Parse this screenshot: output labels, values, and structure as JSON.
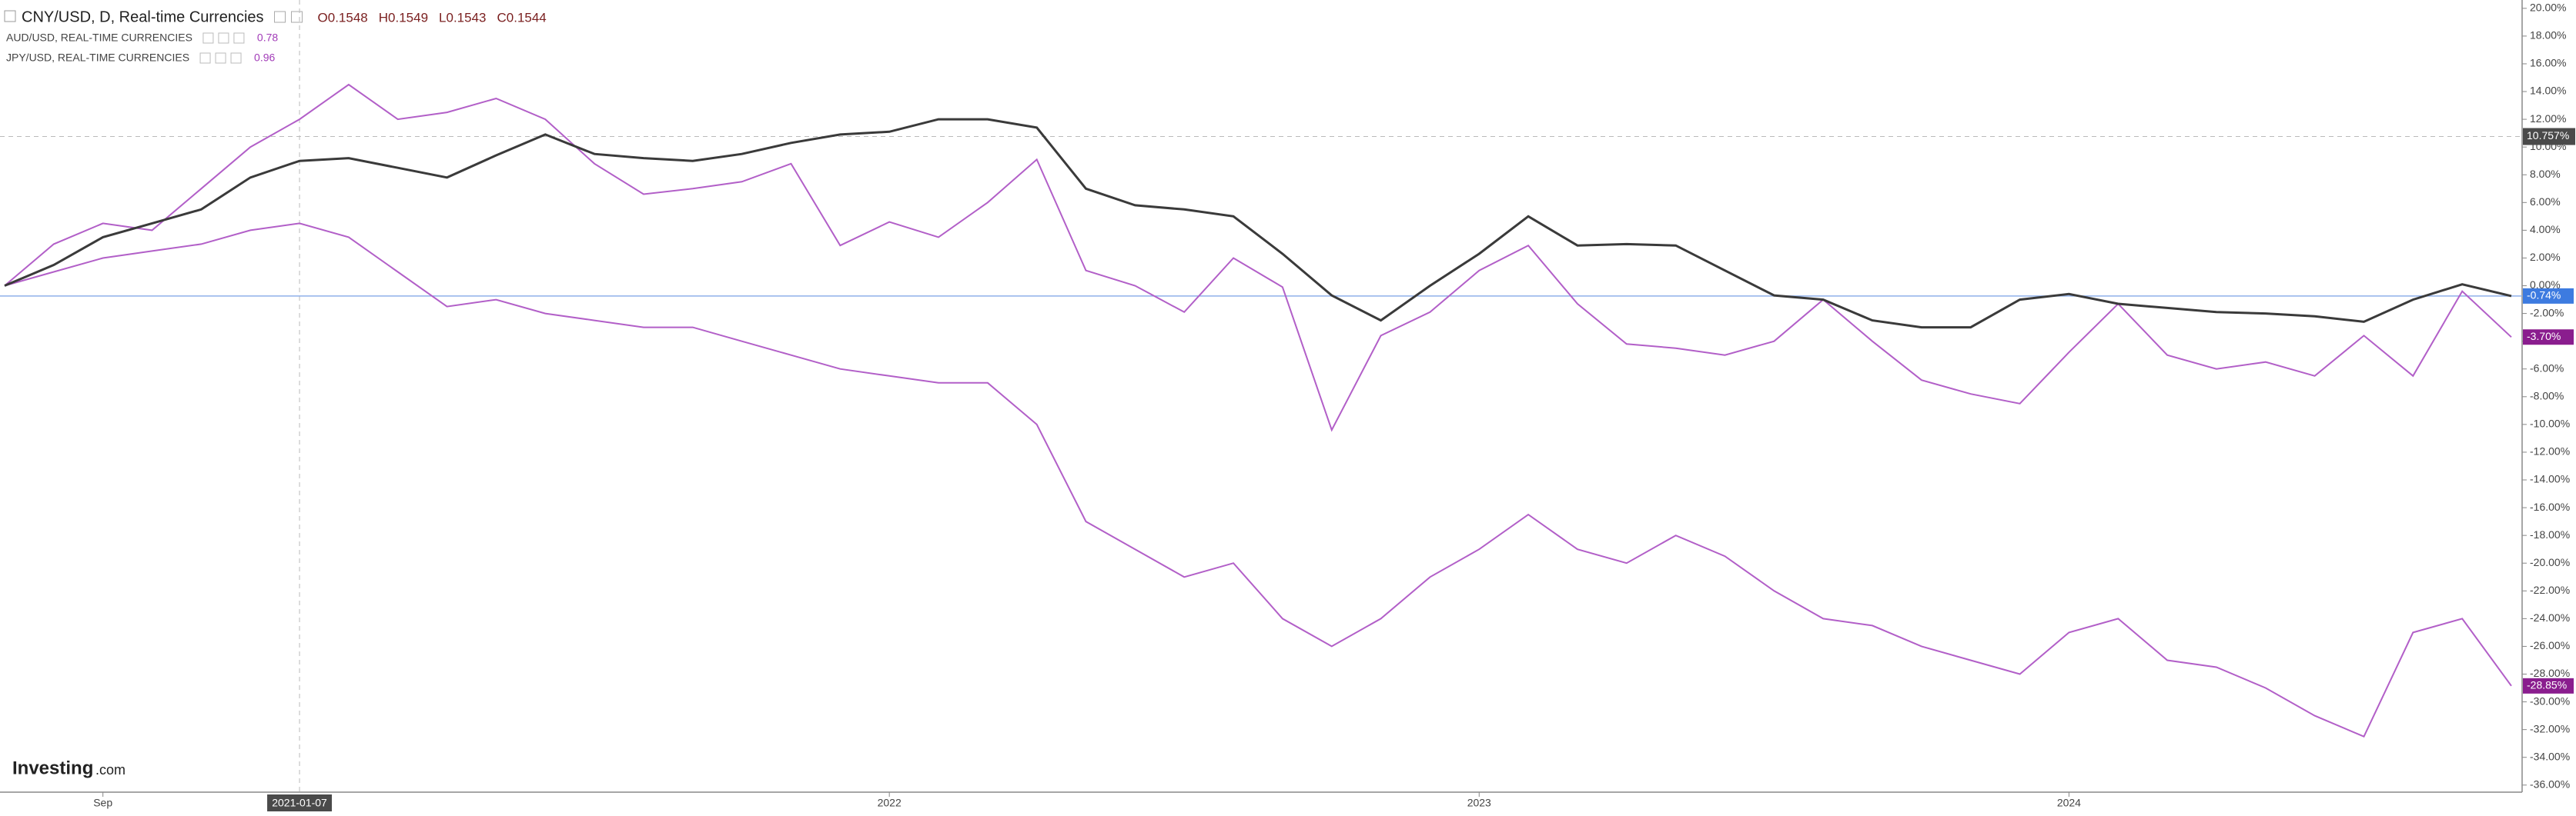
{
  "chart_data": {
    "type": "line",
    "categories": [
      null,
      null,
      "Sep",
      null,
      null,
      null,
      null,
      null,
      null,
      null,
      null,
      null,
      null,
      null,
      null,
      null,
      null,
      null,
      "2022",
      null,
      null,
      null,
      null,
      null,
      null,
      null,
      null,
      null,
      null,
      null,
      "2023",
      null,
      null,
      null,
      null,
      null,
      null,
      null,
      null,
      null,
      null,
      null,
      "2024",
      null,
      null,
      null,
      null,
      null,
      null,
      null,
      null,
      null
    ],
    "series": [
      {
        "name": "CNY/USD, D, Real-time Currencies",
        "color": "#3a3a3a",
        "ohlc": [
          "O0.1548",
          "H0.1549",
          "L0.1543",
          "C0.1544"
        ],
        "badge": {
          "value": -0.74,
          "label": "-0.74%",
          "color": "#3d7be0"
        },
        "values": [
          0,
          1.5,
          3.5,
          4.5,
          5.5,
          7.8,
          9,
          9.2,
          8.5,
          7.8,
          9.4,
          10.9,
          9.5,
          9.2,
          9,
          9.5,
          10.3,
          10.9,
          11.1,
          12,
          12,
          11.4,
          7,
          5.8,
          5.5,
          5,
          2.3,
          -0.7,
          -2.5,
          0,
          2.3,
          5,
          2.9,
          3,
          2.9,
          1.1,
          -0.7,
          -1,
          -2.5,
          -3,
          -3,
          -1,
          -0.6,
          -1.3,
          -1.6,
          -1.9,
          -2,
          -2.2,
          -2.6,
          -1,
          0.1,
          -0.74
        ]
      },
      {
        "name": "AUD/USD, REAL-TIME CURRENCIES",
        "color": "#b25fc8",
        "header_value": 0.78,
        "badge": {
          "value": -3.7,
          "label": "-3.70%",
          "color": "#8a1d8e"
        },
        "values": [
          0,
          3,
          4.5,
          4,
          7,
          10,
          12,
          14.5,
          12,
          12.5,
          13.5,
          12,
          8.8,
          6.6,
          7,
          7.5,
          8.8,
          2.9,
          4.6,
          3.5,
          6,
          9.1,
          1.1,
          0,
          -1.9,
          2,
          -0.1,
          -10.4,
          -3.6,
          -1.9,
          1.1,
          2.9,
          -1.3,
          -4.2,
          -4.5,
          -5,
          -4,
          -1,
          -4,
          -6.8,
          -7.8,
          -8.5,
          -4.8,
          -1.3,
          -5,
          -6,
          -5.5,
          -6.5,
          -3.6,
          -6.5,
          -0.4,
          -3.7
        ]
      },
      {
        "name": "JPY/USD, REAL-TIME CURRENCIES",
        "color": "#b25fc8",
        "header_value": 0.96,
        "badge": {
          "value": -28.85,
          "label": "-28.85%",
          "color": "#8a1d8e"
        },
        "values": [
          0,
          1,
          2,
          2.5,
          3,
          4,
          4.5,
          3.5,
          1,
          -1.5,
          -1,
          -2,
          -2.5,
          -3,
          -3,
          -4,
          -5,
          -6,
          -6.5,
          -7,
          -7,
          -10,
          -17,
          -19,
          -21,
          -20,
          -24,
          -26,
          -24,
          -21,
          -19,
          -16.5,
          -19,
          -20,
          -18,
          -19.5,
          -22,
          -24,
          -24.5,
          -26,
          -27,
          -28,
          -25,
          -24,
          -27,
          -27.5,
          -29,
          -31,
          -32.5,
          -25,
          -24,
          -28.85
        ]
      }
    ],
    "ylim": [
      -36.4,
      20.6
    ],
    "yticks": [
      {
        "value": 20,
        "label": "20.00%"
      },
      {
        "value": 18,
        "label": "18.00%"
      },
      {
        "value": 16,
        "label": "16.00%"
      },
      {
        "value": 14,
        "label": "14.00%"
      },
      {
        "value": 12,
        "label": "12.00%"
      },
      {
        "value": 10,
        "label": "10.00%"
      },
      {
        "value": 8,
        "label": "8.00%"
      },
      {
        "value": 6,
        "label": "6.00%"
      },
      {
        "value": 4,
        "label": "4.00%"
      },
      {
        "value": 2,
        "label": "2.00%"
      },
      {
        "value": 0,
        "label": "0.00%"
      },
      {
        "value": -2,
        "label": "-2.00%"
      },
      {
        "value": -4,
        "label": "-4.00%"
      },
      {
        "value": -6,
        "label": "-6.00%"
      },
      {
        "value": -8,
        "label": "-8.00%"
      },
      {
        "value": -10,
        "label": "-10.00%"
      },
      {
        "value": -12,
        "label": "-12.00%"
      },
      {
        "value": -14,
        "label": "-14.00%"
      },
      {
        "value": -16,
        "label": "-16.00%"
      },
      {
        "value": -18,
        "label": "-18.00%"
      },
      {
        "value": -20,
        "label": "-20.00%"
      },
      {
        "value": -22,
        "label": "-22.00%"
      },
      {
        "value": -24,
        "label": "-24.00%"
      },
      {
        "value": -26,
        "label": "-26.00%"
      },
      {
        "value": -28,
        "label": "-28.00%"
      },
      {
        "value": -30,
        "label": "-30.00%"
      },
      {
        "value": -32,
        "label": "-32.00%"
      },
      {
        "value": -34,
        "label": "-34.00%"
      },
      {
        "value": -36,
        "label": "-36.00%"
      }
    ],
    "crosshair": {
      "x_label": "2021-01-07",
      "y": {
        "value": 10.757,
        "label": "10.757%"
      }
    },
    "logo": {
      "name": "Investing",
      "suffix": ".com"
    }
  }
}
